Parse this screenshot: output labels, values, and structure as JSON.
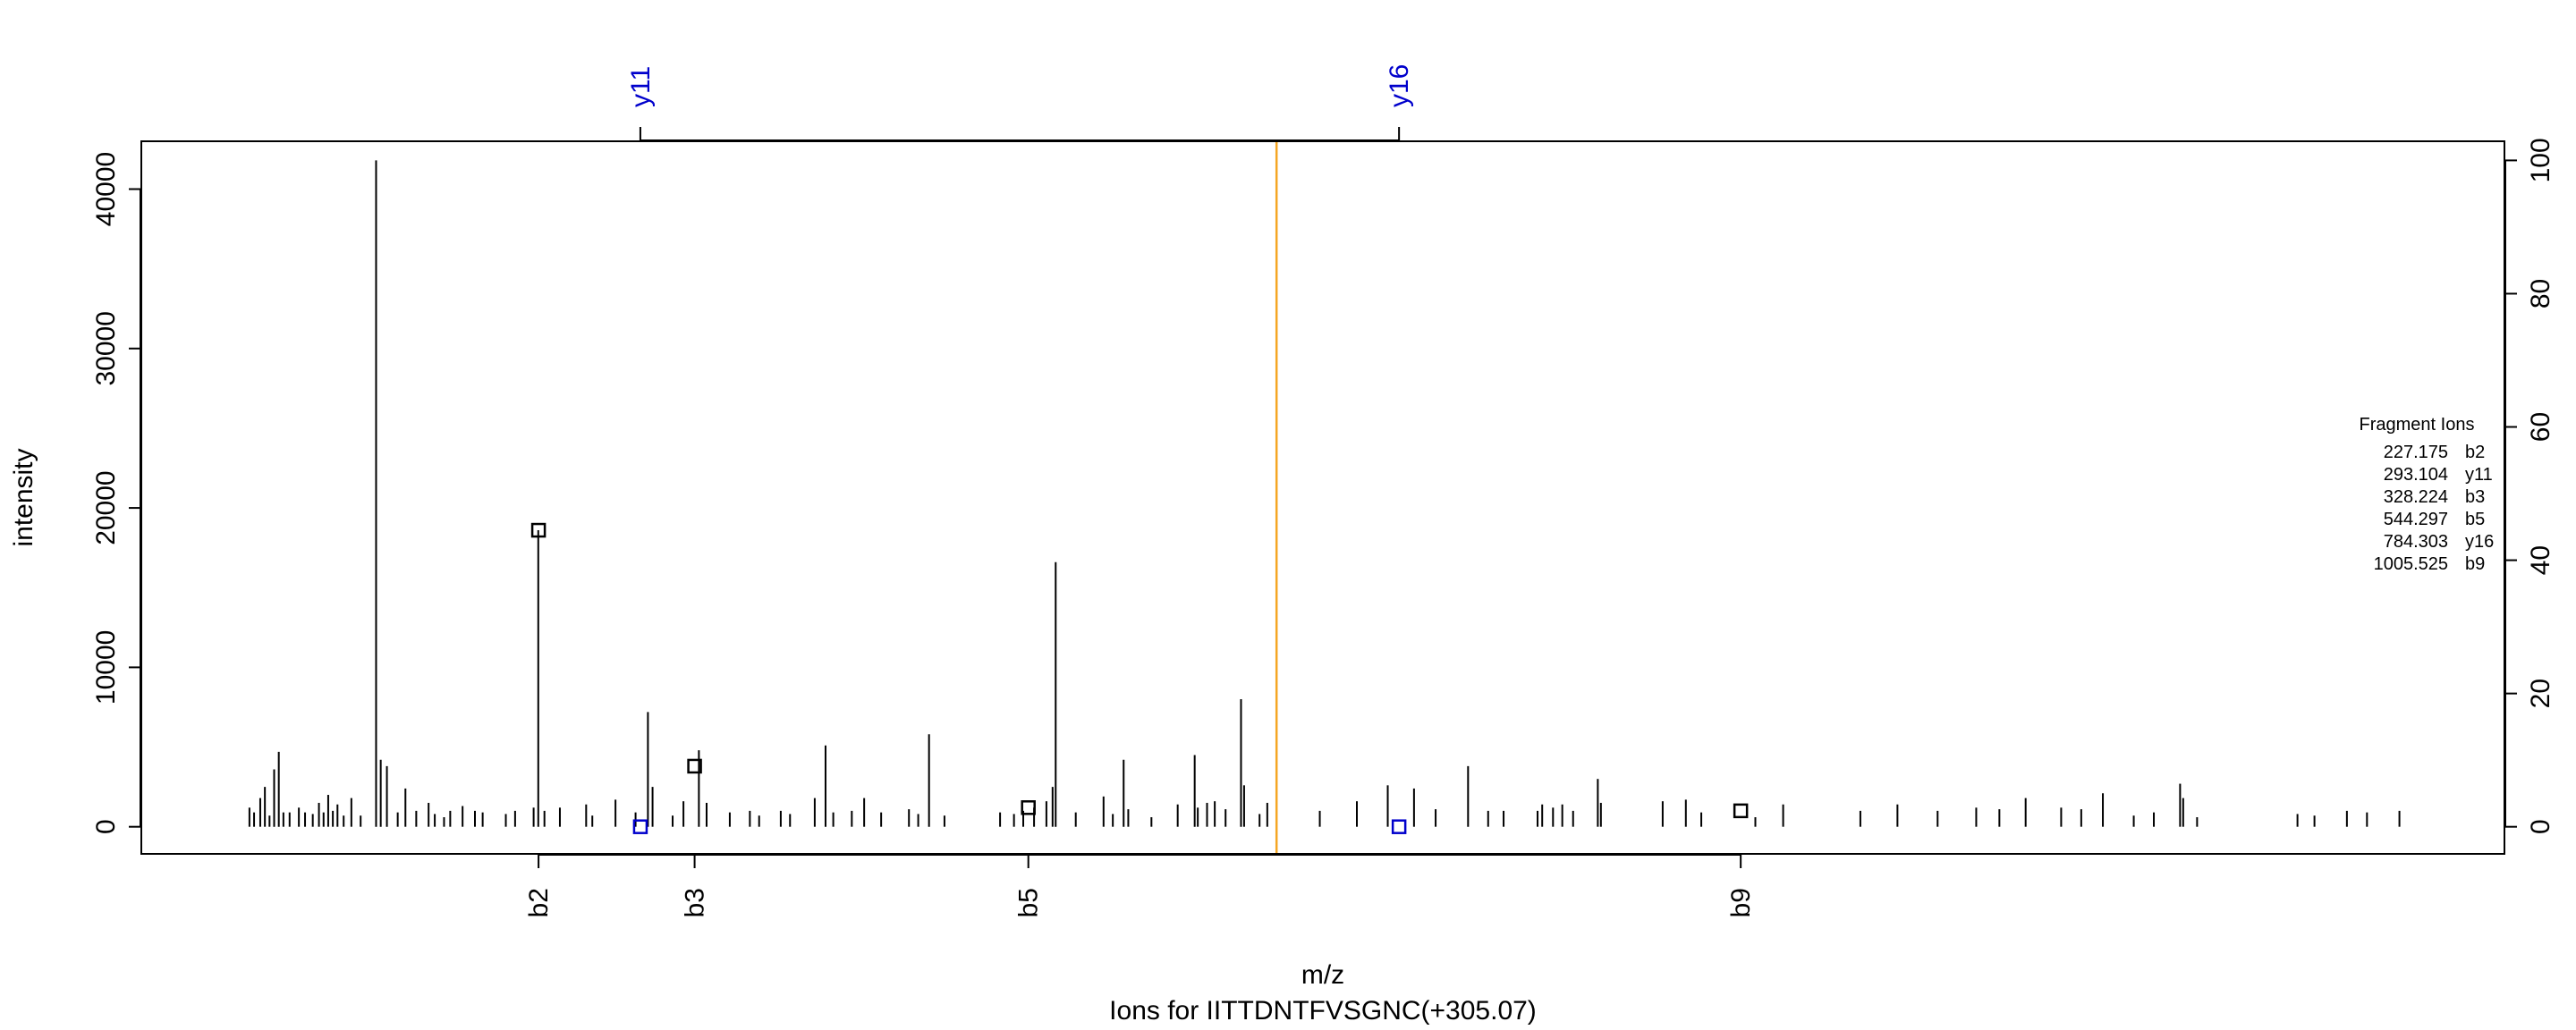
{
  "chart_data": {
    "type": "bar",
    "title": "Ions for IITTDNTFVSGNC(+305.07)",
    "xlabel": "m/z",
    "ylabel": "intensity",
    "ylim": [
      -1700,
      43000
    ],
    "xlim": [
      -30,
      1500
    ],
    "y_ticks": [
      0,
      10000,
      20000,
      30000,
      40000
    ],
    "right_ticks": [
      0,
      20,
      40,
      60,
      80,
      100
    ],
    "precursor_mz": 705,
    "precursor_color": "#f5a623",
    "b_color": "#000000",
    "y_color": "#0000cc",
    "top_axis": [
      {
        "label": "y11",
        "mz": 293.104
      },
      {
        "label": "y16",
        "mz": 784.303
      }
    ],
    "bottom_axis": [
      {
        "label": "b2",
        "mz": 227.175
      },
      {
        "label": "b3",
        "mz": 328.224
      },
      {
        "label": "b5",
        "mz": 544.297
      },
      {
        "label": "b9",
        "mz": 1005.525
      }
    ],
    "matched": [
      {
        "mz": 227.175,
        "intensity": 18600,
        "series": "b"
      },
      {
        "mz": 293.104,
        "intensity": 0,
        "series": "y"
      },
      {
        "mz": 328.224,
        "intensity": 3800,
        "series": "b"
      },
      {
        "mz": 544.297,
        "intensity": 1200,
        "series": "b"
      },
      {
        "mz": 784.303,
        "intensity": 0,
        "series": "y"
      },
      {
        "mz": 1005.525,
        "intensity": 1000,
        "series": "b"
      }
    ],
    "peaks": [
      [
        35,
        0
      ],
      [
        40,
        1200
      ],
      [
        43,
        900
      ],
      [
        47,
        1800
      ],
      [
        50,
        2500
      ],
      [
        53,
        700
      ],
      [
        56,
        3600
      ],
      [
        59,
        4700
      ],
      [
        62,
        900
      ],
      [
        66,
        900
      ],
      [
        72,
        1200
      ],
      [
        76,
        900
      ],
      [
        81,
        800
      ],
      [
        85,
        1500
      ],
      [
        88,
        900
      ],
      [
        91,
        2000
      ],
      [
        94,
        1000
      ],
      [
        97,
        1400
      ],
      [
        101,
        700
      ],
      [
        106,
        1800
      ],
      [
        112,
        700
      ],
      [
        122,
        41800
      ],
      [
        125,
        4200
      ],
      [
        129,
        3800
      ],
      [
        136,
        900
      ],
      [
        141,
        2400
      ],
      [
        148,
        1000
      ],
      [
        156,
        1500
      ],
      [
        160,
        800
      ],
      [
        166,
        600
      ],
      [
        170,
        1000
      ],
      [
        178,
        1300
      ],
      [
        186,
        1000
      ],
      [
        191,
        900
      ],
      [
        206,
        800
      ],
      [
        212,
        1000
      ],
      [
        224,
        1200
      ],
      [
        227,
        18600
      ],
      [
        231,
        1000
      ],
      [
        241,
        1200
      ],
      [
        258,
        1400
      ],
      [
        262,
        700
      ],
      [
        277,
        1700
      ],
      [
        290,
        900
      ],
      [
        298,
        7200
      ],
      [
        301,
        2500
      ],
      [
        314,
        700
      ],
      [
        321,
        1600
      ],
      [
        331,
        4800
      ],
      [
        336,
        1500
      ],
      [
        351,
        900
      ],
      [
        364,
        1000
      ],
      [
        370,
        700
      ],
      [
        384,
        1000
      ],
      [
        390,
        800
      ],
      [
        406,
        1800
      ],
      [
        413,
        5100
      ],
      [
        418,
        900
      ],
      [
        430,
        1000
      ],
      [
        438,
        1800
      ],
      [
        449,
        900
      ],
      [
        467,
        1100
      ],
      [
        473,
        800
      ],
      [
        480,
        5800
      ],
      [
        490,
        700
      ],
      [
        526,
        900
      ],
      [
        535,
        800
      ],
      [
        541,
        1000
      ],
      [
        548,
        1200
      ],
      [
        556,
        1600
      ],
      [
        560,
        2500
      ],
      [
        562,
        16600
      ],
      [
        575,
        900
      ],
      [
        593,
        1900
      ],
      [
        599,
        800
      ],
      [
        606,
        4200
      ],
      [
        609,
        1100
      ],
      [
        624,
        600
      ],
      [
        641,
        1400
      ],
      [
        652,
        4500
      ],
      [
        654,
        1200
      ],
      [
        660,
        1500
      ],
      [
        665,
        1600
      ],
      [
        672,
        1100
      ],
      [
        682,
        8000
      ],
      [
        684,
        2600
      ],
      [
        694,
        800
      ],
      [
        699,
        1500
      ],
      [
        733,
        1000
      ],
      [
        757,
        1600
      ],
      [
        777,
        2600
      ],
      [
        794,
        2400
      ],
      [
        808,
        1100
      ],
      [
        829,
        3800
      ],
      [
        842,
        1000
      ],
      [
        852,
        1000
      ],
      [
        874,
        1000
      ],
      [
        877,
        1400
      ],
      [
        884,
        1200
      ],
      [
        890,
        1400
      ],
      [
        897,
        1000
      ],
      [
        913,
        3000
      ],
      [
        915,
        1500
      ],
      [
        955,
        1600
      ],
      [
        970,
        1700
      ],
      [
        980,
        900
      ],
      [
        1015,
        600
      ],
      [
        1033,
        1400
      ],
      [
        1083,
        1000
      ],
      [
        1107,
        1400
      ],
      [
        1133,
        1000
      ],
      [
        1158,
        1200
      ],
      [
        1173,
        1100
      ],
      [
        1190,
        1800
      ],
      [
        1213,
        1200
      ],
      [
        1226,
        1100
      ],
      [
        1240,
        2100
      ],
      [
        1260,
        700
      ],
      [
        1273,
        900
      ],
      [
        1290,
        2700
      ],
      [
        1292,
        1800
      ],
      [
        1301,
        600
      ],
      [
        1366,
        800
      ],
      [
        1377,
        700
      ],
      [
        1398,
        1000
      ],
      [
        1411,
        900
      ],
      [
        1432,
        1000
      ]
    ],
    "legend": {
      "title": "Fragment Ions",
      "entries": [
        {
          "mz": "227.175",
          "ion": "b2"
        },
        {
          "mz": "293.104",
          "ion": "y11"
        },
        {
          "mz": "328.224",
          "ion": "b3"
        },
        {
          "mz": "544.297",
          "ion": "b5"
        },
        {
          "mz": "784.303",
          "ion": "y16"
        },
        {
          "mz": "1005.525",
          "ion": "b9"
        }
      ]
    }
  }
}
